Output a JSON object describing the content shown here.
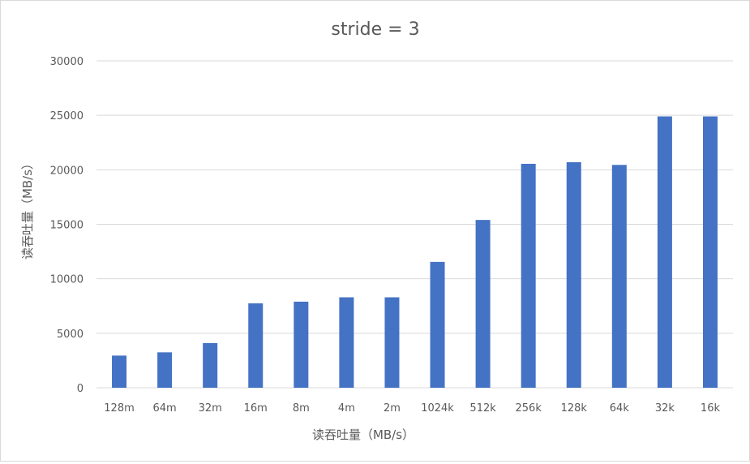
{
  "chart_data": {
    "type": "bar",
    "title": "stride = 3",
    "xlabel": "读吞吐量（MB/s）",
    "ylabel": "读吞吐量（MB/s）",
    "categories": [
      "128m",
      "64m",
      "32m",
      "16m",
      "8m",
      "4m",
      "2m",
      "1024k",
      "512k",
      "256k",
      "128k",
      "64k",
      "32k",
      "16k"
    ],
    "series": [
      {
        "values": [
          2950,
          3250,
          4100,
          7750,
          7900,
          8300,
          8300,
          11550,
          15400,
          20550,
          20700,
          20450,
          24900,
          24900
        ]
      }
    ],
    "ylim": [
      0,
      30000
    ],
    "yticks": [
      0,
      5000,
      10000,
      15000,
      20000,
      25000,
      30000
    ],
    "grid": true,
    "legend": "none",
    "colors": {
      "bar": "#4472c4",
      "grid": "#d9d9d9",
      "text": "#595959"
    }
  }
}
